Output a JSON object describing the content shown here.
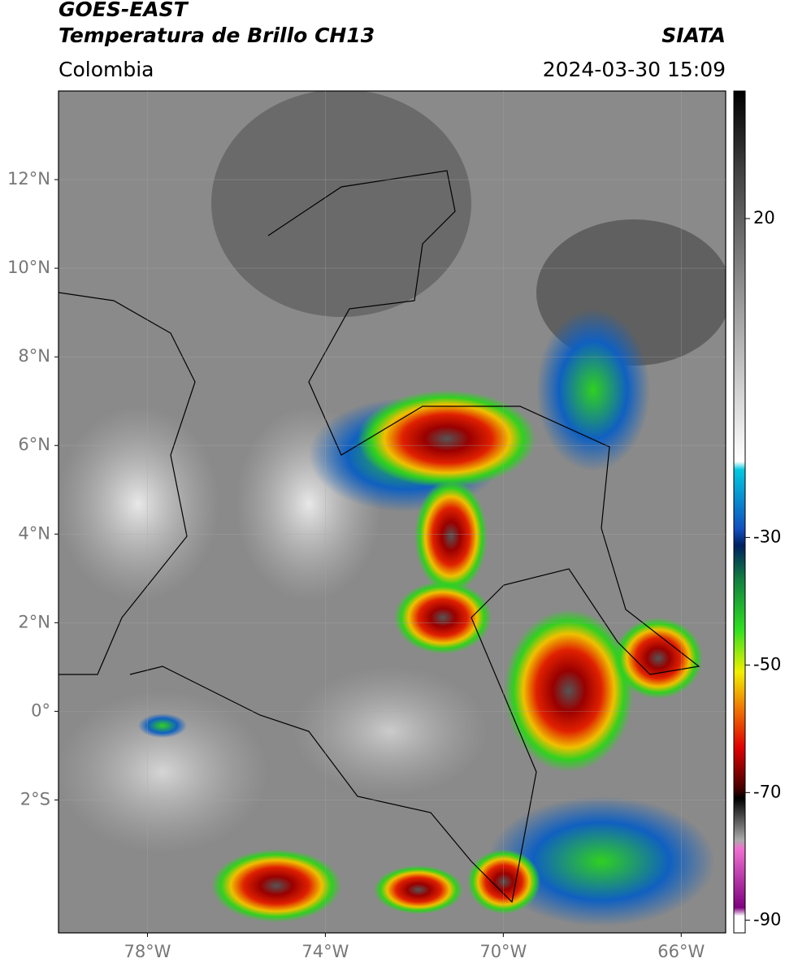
{
  "header": {
    "satellite": "GOES-EAST",
    "product": "Temperatura de Brillo CH13",
    "agency": "SIATA",
    "region": "Colombia",
    "timestamp": "2024-03-30 15:09"
  },
  "map": {
    "xlim": [
      -80,
      -65
    ],
    "ylim": [
      -5,
      14
    ],
    "grid": true,
    "xticks": [
      {
        "value": -78,
        "label": "78°W"
      },
      {
        "value": -74,
        "label": "74°W"
      },
      {
        "value": -70,
        "label": "70°W"
      },
      {
        "value": -66,
        "label": "66°W"
      }
    ],
    "yticks": [
      {
        "value": 12,
        "label": "12°N"
      },
      {
        "value": 10,
        "label": "10°N"
      },
      {
        "value": 8,
        "label": "8°N"
      },
      {
        "value": 6,
        "label": "6°N"
      },
      {
        "value": 4,
        "label": "4°N"
      },
      {
        "value": 2,
        "label": "2°N"
      },
      {
        "value": 0,
        "label": "0°"
      },
      {
        "value": -2,
        "label": "2°S"
      }
    ]
  },
  "colorbar": {
    "lim": [
      -92,
      40
    ],
    "ticks": [
      20,
      -30,
      -50,
      -70,
      -90
    ]
  }
}
